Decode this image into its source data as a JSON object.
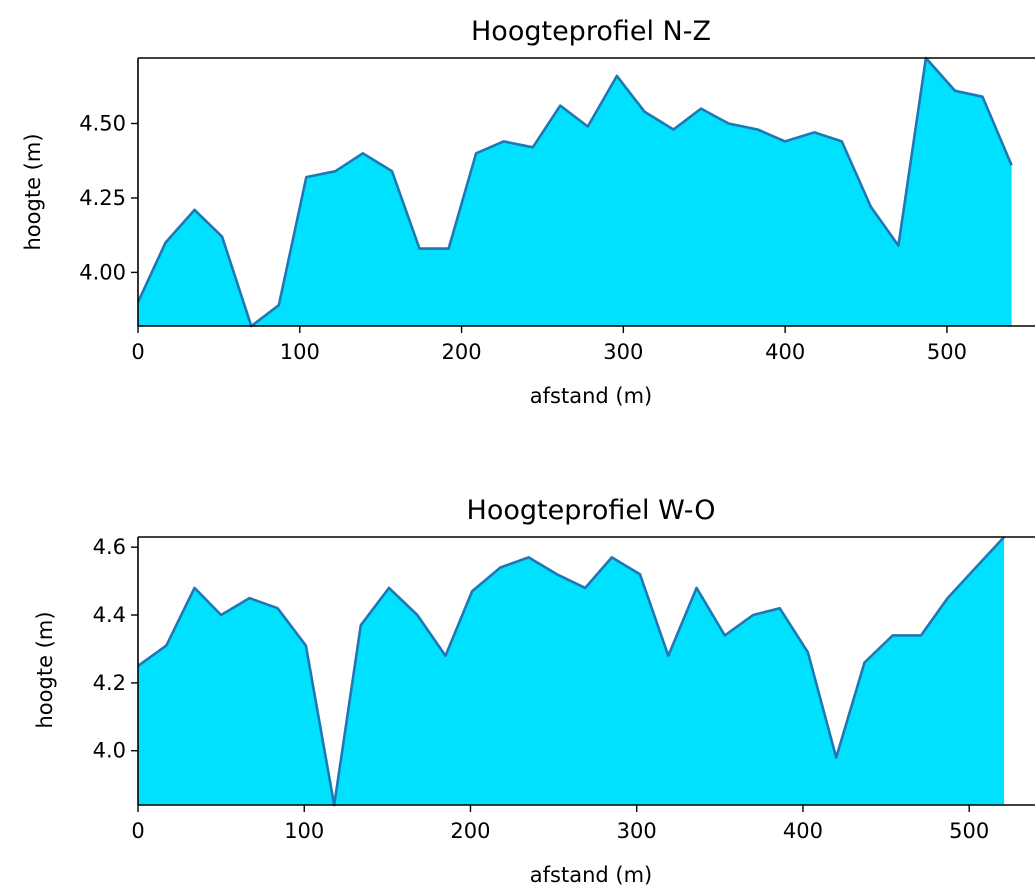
{
  "colors": {
    "fill": "#00e1ff",
    "line": "#1f77b4",
    "axes": "#000000",
    "background": "#ffffff"
  },
  "chart_data": [
    {
      "type": "area",
      "title": "Hoogteprofiel N-Z",
      "xlabel": "afstand (m)",
      "ylabel": "hoogte (m)",
      "xlim": [
        0,
        560
      ],
      "ylim": [
        3.82,
        4.72
      ],
      "xticks": [
        "0",
        "100",
        "200",
        "300",
        "400",
        "500"
      ],
      "xtick_values": [
        0,
        100,
        200,
        300,
        400,
        500
      ],
      "yticks": [
        "4.00",
        "4.25",
        "4.50"
      ],
      "ytick_values": [
        4.0,
        4.25,
        4.5
      ],
      "grid": false,
      "x": [
        0,
        17,
        35,
        52,
        70,
        87,
        104,
        122,
        139,
        157,
        174,
        192,
        209,
        226,
        244,
        261,
        278,
        296,
        313,
        331,
        348,
        365,
        383,
        400,
        418,
        435,
        453,
        470,
        487,
        505,
        522,
        540
      ],
      "y": [
        3.9,
        4.1,
        4.21,
        4.12,
        3.82,
        3.89,
        4.32,
        4.34,
        4.4,
        4.34,
        4.08,
        4.08,
        4.4,
        4.44,
        4.42,
        4.56,
        4.49,
        4.66,
        4.54,
        4.48,
        4.55,
        4.5,
        4.48,
        4.44,
        4.47,
        4.44,
        4.22,
        4.09,
        4.72,
        4.61,
        4.59,
        4.36
      ]
    },
    {
      "type": "area",
      "title": "Hoogteprofiel W-O",
      "xlabel": "afstand (m)",
      "ylabel": "hoogte (m)",
      "xlim": [
        0,
        545
      ],
      "ylim": [
        3.84,
        4.63
      ],
      "xticks": [
        "0",
        "100",
        "200",
        "300",
        "400",
        "500"
      ],
      "xtick_values": [
        0,
        100,
        200,
        300,
        400,
        500
      ],
      "yticks": [
        "4.0",
        "4.2",
        "4.4",
        "4.6"
      ],
      "ytick_values": [
        4.0,
        4.2,
        4.4,
        4.6
      ],
      "grid": false,
      "x": [
        0,
        17,
        34,
        50,
        67,
        84,
        101,
        118,
        134,
        151,
        168,
        185,
        201,
        218,
        235,
        252,
        269,
        285,
        302,
        319,
        336,
        353,
        370,
        386,
        403,
        420,
        437,
        454,
        471,
        487,
        504,
        521
      ],
      "y": [
        4.25,
        4.31,
        4.48,
        4.4,
        4.45,
        4.42,
        4.31,
        3.84,
        4.37,
        4.48,
        4.4,
        4.28,
        4.47,
        4.54,
        4.57,
        4.52,
        4.48,
        4.57,
        4.52,
        4.28,
        4.48,
        4.34,
        4.4,
        4.42,
        4.29,
        3.98,
        4.26,
        4.34,
        4.34,
        4.45,
        4.54,
        4.63
      ]
    }
  ]
}
